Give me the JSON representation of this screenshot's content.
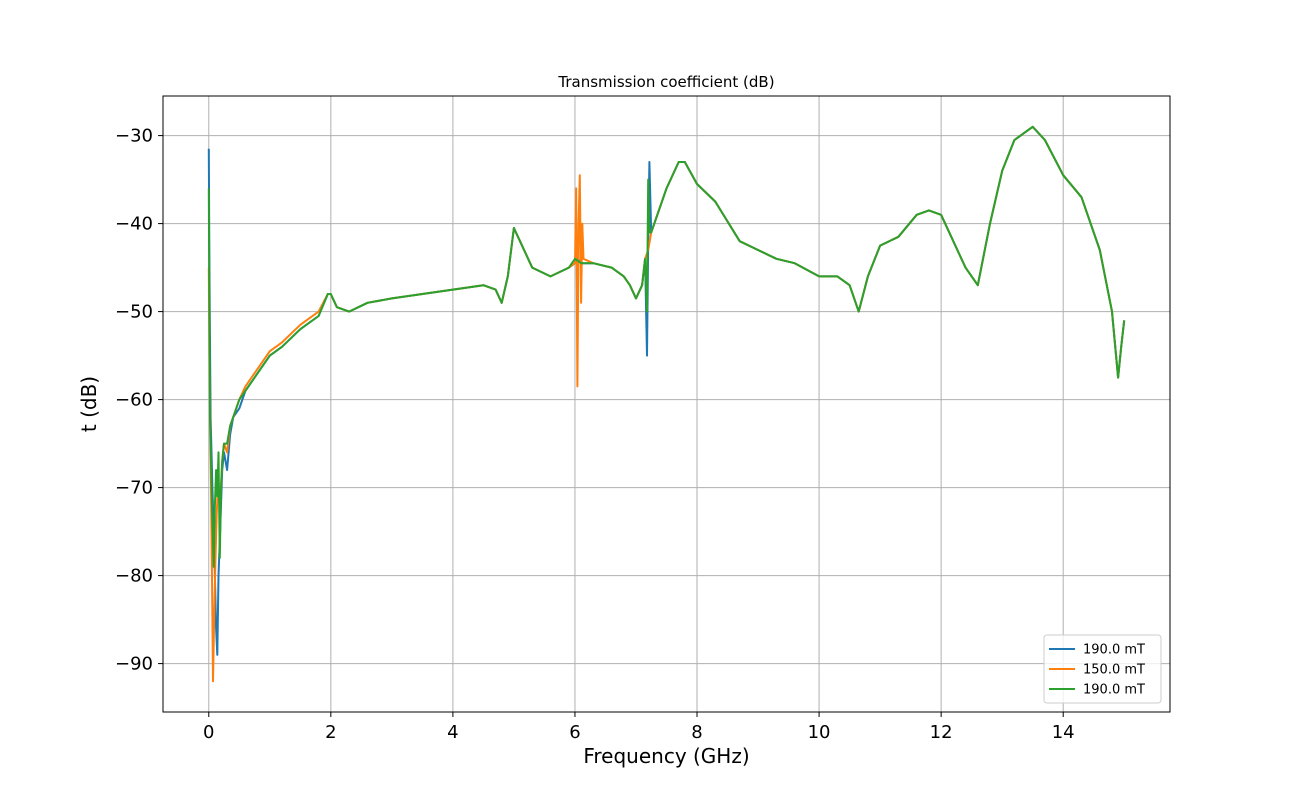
{
  "chart_data": {
    "type": "line",
    "title": "Transmission coefficient (dB)",
    "xlabel": "Frequency (GHz)",
    "ylabel": "t (dB)",
    "xlim": [
      -0.75,
      15.75
    ],
    "ylim": [
      -95.5,
      -25.5
    ],
    "xticks": [
      0,
      2,
      4,
      6,
      8,
      10,
      12,
      14
    ],
    "yticks": [
      -90,
      -80,
      -70,
      -60,
      -50,
      -40,
      -30
    ],
    "xtick_labels": [
      "0",
      "2",
      "4",
      "6",
      "8",
      "10",
      "12",
      "14"
    ],
    "ytick_labels": [
      "−90",
      "−80",
      "−70",
      "−60",
      "−50",
      "−40",
      "−30"
    ],
    "grid": true,
    "legend_position": "lower-right",
    "series": [
      {
        "name": "190.0 mT",
        "color": "#1f77b4",
        "x": [
          0.0,
          0.01,
          0.03,
          0.06,
          0.08,
          0.1,
          0.12,
          0.14,
          0.16,
          0.18,
          0.2,
          0.22,
          0.25,
          0.3,
          0.35,
          0.4,
          0.5,
          0.6,
          0.8,
          1.0,
          1.2,
          1.5,
          1.8,
          1.95,
          2.0,
          2.1,
          2.3,
          2.6,
          3.0,
          3.5,
          4.0,
          4.5,
          4.7,
          4.8,
          4.9,
          5.0,
          5.1,
          5.3,
          5.6,
          5.9,
          6.0,
          6.05,
          6.1,
          6.3,
          6.6,
          6.8,
          6.9,
          7.0,
          7.1,
          7.15,
          7.18,
          7.2,
          7.22,
          7.25,
          7.3,
          7.5,
          7.7,
          7.8,
          8.0,
          8.3,
          8.7,
          9.0,
          9.3,
          9.6,
          10.0,
          10.3,
          10.5,
          10.65,
          10.8,
          11.0,
          11.3,
          11.6,
          11.8,
          12.0,
          12.2,
          12.4,
          12.6,
          12.8,
          13.0,
          13.2,
          13.4,
          13.5,
          13.7,
          14.0,
          14.3,
          14.6,
          14.8,
          14.9,
          14.95,
          15.0
        ],
        "y": [
          -31.5,
          -45,
          -62,
          -70,
          -75,
          -80,
          -86,
          -89,
          -80,
          -76,
          -72,
          -68,
          -66,
          -68,
          -64,
          -62,
          -61,
          -59,
          -57,
          -55,
          -54,
          -52,
          -50.5,
          -48,
          -48,
          -49.5,
          -50,
          -49,
          -48.5,
          -48,
          -47.5,
          -47,
          -47.5,
          -49,
          -46,
          -40.5,
          -42,
          -45,
          -46,
          -45,
          -44.5,
          -44,
          -44.5,
          -44.5,
          -45,
          -46,
          -47,
          -48.5,
          -47,
          -44,
          -55,
          -42,
          -33,
          -41,
          -40,
          -36,
          -33,
          -33,
          -35.5,
          -37.5,
          -42,
          -43,
          -44,
          -44.5,
          -46,
          -46,
          -47,
          -50,
          -46,
          -42.5,
          -41.5,
          -39,
          -38.5,
          -39,
          -42,
          -45,
          -47,
          -40,
          -34,
          -30.5,
          -29.5,
          -29,
          -30.5,
          -34.5,
          -37,
          -43,
          -50,
          -57.5,
          -54,
          -51
        ]
      },
      {
        "name": "150.0 mT",
        "color": "#ff7f0e",
        "x": [
          0.0,
          0.01,
          0.03,
          0.05,
          0.07,
          0.09,
          0.11,
          0.13,
          0.15,
          0.18,
          0.2,
          0.22,
          0.25,
          0.3,
          0.35,
          0.4,
          0.5,
          0.6,
          0.8,
          1.0,
          1.2,
          1.5,
          1.8,
          1.95,
          2.0,
          2.1,
          2.3,
          2.6,
          3.0,
          3.5,
          4.0,
          4.5,
          4.7,
          4.8,
          4.9,
          5.0,
          5.1,
          5.3,
          5.6,
          5.9,
          6.0,
          6.02,
          6.04,
          6.06,
          6.08,
          6.1,
          6.12,
          6.14,
          6.3,
          6.6,
          6.8,
          6.9,
          7.0,
          7.1,
          7.15,
          7.2,
          7.25,
          7.3,
          7.5,
          7.7,
          7.8,
          8.0,
          8.3,
          8.7,
          9.0,
          9.3,
          9.6,
          10.0,
          10.3,
          10.5,
          10.65,
          10.8,
          11.0,
          11.3,
          11.6,
          11.8,
          12.0,
          12.2,
          12.4,
          12.6,
          12.8,
          13.0,
          13.2,
          13.4,
          13.5,
          13.7,
          14.0,
          14.3,
          14.6,
          14.8,
          14.9,
          14.95,
          15.0
        ],
        "y": [
          -45,
          -55,
          -66,
          -78,
          -92,
          -84,
          -78,
          -73,
          -70,
          -72,
          -70,
          -67,
          -65,
          -66,
          -63,
          -62,
          -60,
          -58.5,
          -56.5,
          -54.5,
          -53.5,
          -51.5,
          -50,
          -48,
          -48,
          -49.5,
          -50,
          -49,
          -48.5,
          -48,
          -47.5,
          -47,
          -47.5,
          -49,
          -46,
          -40.5,
          -42,
          -45,
          -46,
          -45,
          -44.5,
          -36,
          -58.5,
          -40,
          -34.5,
          -49,
          -40,
          -44,
          -44.5,
          -45,
          -46,
          -47,
          -48.5,
          -47,
          -44,
          -43,
          -41,
          -40,
          -36,
          -33,
          -33,
          -35.5,
          -37.5,
          -42,
          -43,
          -44,
          -44.5,
          -46,
          -46,
          -47,
          -50,
          -46,
          -42.5,
          -41.5,
          -39,
          -38.5,
          -39,
          -42,
          -45,
          -47,
          -40,
          -34,
          -30.5,
          -29.5,
          -29,
          -30.5,
          -34.5,
          -37,
          -43,
          -50,
          -57.5,
          -54,
          -51
        ]
      },
      {
        "name": "190.0 mT",
        "color": "#2ca02c",
        "x": [
          0.0,
          0.01,
          0.02,
          0.04,
          0.06,
          0.08,
          0.1,
          0.12,
          0.14,
          0.16,
          0.18,
          0.2,
          0.22,
          0.25,
          0.3,
          0.35,
          0.4,
          0.5,
          0.6,
          0.8,
          1.0,
          1.2,
          1.5,
          1.8,
          1.95,
          2.0,
          2.1,
          2.3,
          2.6,
          3.0,
          3.5,
          4.0,
          4.5,
          4.7,
          4.8,
          4.9,
          5.0,
          5.1,
          5.3,
          5.6,
          5.9,
          6.0,
          6.1,
          6.3,
          6.6,
          6.8,
          6.9,
          7.0,
          7.1,
          7.15,
          7.18,
          7.2,
          7.22,
          7.25,
          7.3,
          7.5,
          7.7,
          7.8,
          8.0,
          8.3,
          8.7,
          9.0,
          9.3,
          9.6,
          10.0,
          10.3,
          10.5,
          10.65,
          10.8,
          11.0,
          11.3,
          11.6,
          11.8,
          12.0,
          12.2,
          12.4,
          12.6,
          12.8,
          13.0,
          13.2,
          13.4,
          13.5,
          13.7,
          14.0,
          14.3,
          14.6,
          14.8,
          14.9,
          14.95,
          15.0
        ],
        "y": [
          -36,
          -50,
          -62,
          -68,
          -74,
          -79,
          -72,
          -68,
          -71,
          -66,
          -78,
          -70,
          -67,
          -65,
          -65,
          -63,
          -62,
          -60,
          -59,
          -57,
          -55,
          -54,
          -52,
          -50.5,
          -48,
          -48,
          -49.5,
          -50,
          -49,
          -48.5,
          -48,
          -47.5,
          -47,
          -47.5,
          -49,
          -46,
          -40.5,
          -42,
          -45,
          -46,
          -45,
          -44,
          -44.5,
          -44.5,
          -45,
          -46,
          -47,
          -48.5,
          -47,
          -44,
          -50,
          -35,
          -41,
          -41,
          -40,
          -36,
          -33,
          -33,
          -35.5,
          -37.5,
          -42,
          -43,
          -44,
          -44.5,
          -46,
          -46,
          -47,
          -50,
          -46,
          -42.5,
          -41.5,
          -39,
          -38.5,
          -39,
          -42,
          -45,
          -47,
          -40,
          -34,
          -30.5,
          -29.5,
          -29,
          -30.5,
          -34.5,
          -37,
          -43,
          -50,
          -57.5,
          -54,
          -51
        ]
      }
    ]
  }
}
